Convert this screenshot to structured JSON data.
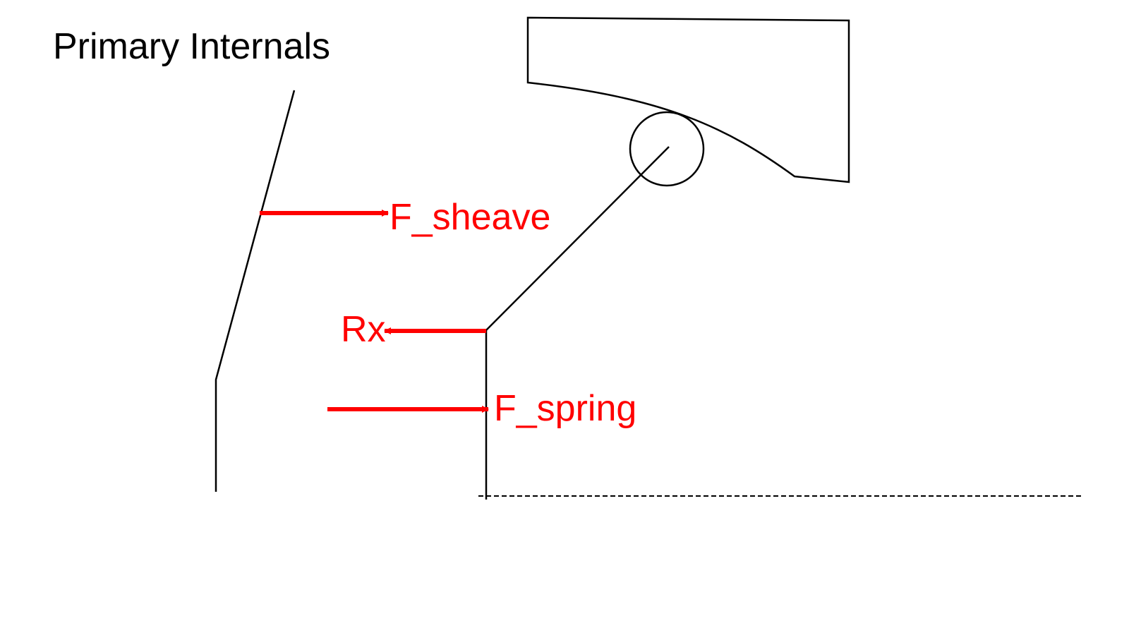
{
  "title": "Primary Internals",
  "colors": {
    "line": "#000000",
    "force": "#ff0000",
    "background": "#ffffff"
  },
  "forces": {
    "f_sheave": "F_sheave",
    "rx": "Rx",
    "f_spring": "F_spring"
  }
}
